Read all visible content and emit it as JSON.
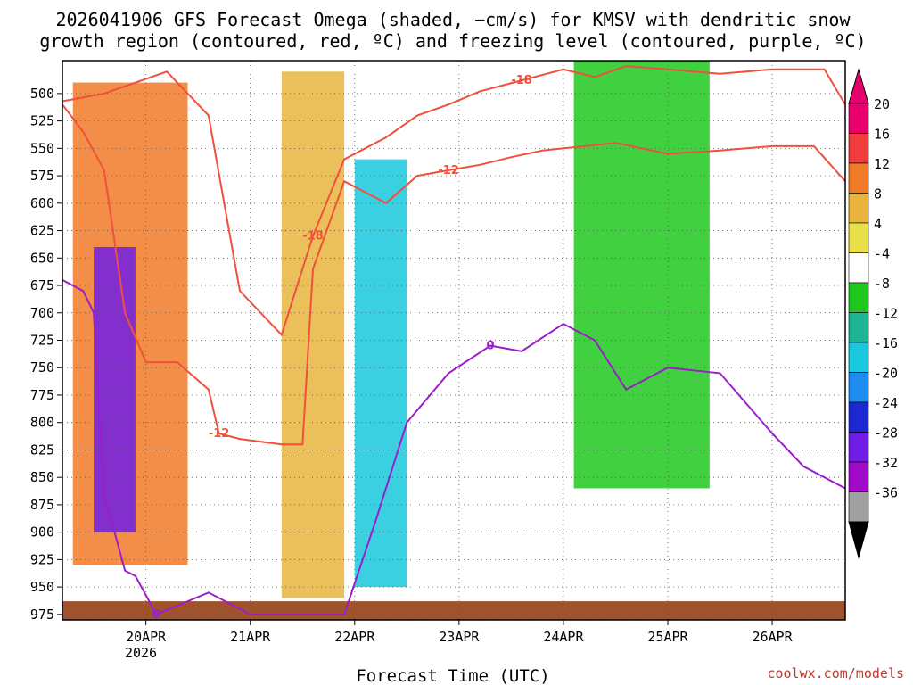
{
  "chart_data": {
    "type": "time-height cross section",
    "title_line1": "2026041906 GFS Forecast Omega (shaded, −cm/s) for KMSV with dendritic snow",
    "title_line2": "growth region (contoured, red, ºC) and freezing level (contoured, purple, ºC)",
    "xlabel": "Forecast Time (UTC)",
    "credit": "coolwx.com/models",
    "year_label": "2026",
    "x_ticks": [
      "20APR",
      "21APR",
      "22APR",
      "23APR",
      "24APR",
      "25APR",
      "26APR"
    ],
    "x_range_days": [
      -0.8,
      6.7
    ],
    "y_ticks": [
      500,
      525,
      550,
      575,
      600,
      625,
      650,
      675,
      700,
      725,
      750,
      775,
      800,
      825,
      850,
      875,
      900,
      925,
      950,
      975
    ],
    "y_range_hpa": [
      470,
      980
    ],
    "colorbar": {
      "labels": [
        "20",
        "16",
        "12",
        "8",
        "4",
        "-4",
        "-8",
        "-12",
        "-16",
        "-20",
        "-24",
        "-28",
        "-32",
        "-36"
      ],
      "colors": [
        "#e8006e",
        "#f03c3c",
        "#f07a28",
        "#e8b43c",
        "#e8e046",
        "#ffffff",
        "#1ec81e",
        "#1eb496",
        "#19c8dc",
        "#1e8cf0",
        "#1e28d2",
        "#6e1ee6",
        "#a00ac8",
        "#a0a0a0"
      ]
    },
    "dendritic_contours": {
      "upper_-18C": {
        "label": "-18",
        "points": [
          [
            -0.8,
            507
          ],
          [
            -0.4,
            500
          ],
          [
            0.2,
            480
          ],
          [
            0.6,
            520
          ],
          [
            0.9,
            680
          ],
          [
            1.3,
            720
          ],
          [
            1.6,
            630
          ],
          [
            1.9,
            560
          ],
          [
            2.3,
            540
          ],
          [
            2.6,
            520
          ],
          [
            2.9,
            510
          ],
          [
            3.2,
            498
          ],
          [
            3.6,
            488
          ],
          [
            4.0,
            478
          ],
          [
            4.3,
            485
          ],
          [
            4.6,
            475
          ],
          [
            5.0,
            478
          ],
          [
            5.5,
            482
          ],
          [
            6.0,
            478
          ],
          [
            6.5,
            478
          ],
          [
            6.7,
            510
          ]
        ]
      },
      "lower_-12C": {
        "label": "-12",
        "points": [
          [
            -0.8,
            510
          ],
          [
            -0.6,
            535
          ],
          [
            -0.4,
            570
          ],
          [
            -0.2,
            700
          ],
          [
            0.0,
            745
          ],
          [
            0.3,
            745
          ],
          [
            0.6,
            770
          ],
          [
            0.7,
            810
          ],
          [
            0.9,
            815
          ],
          [
            1.3,
            820
          ],
          [
            1.5,
            820
          ],
          [
            1.6,
            660
          ],
          [
            1.9,
            580
          ],
          [
            2.3,
            600
          ],
          [
            2.6,
            575
          ],
          [
            2.9,
            570
          ],
          [
            3.2,
            565
          ],
          [
            3.5,
            558
          ],
          [
            3.8,
            552
          ],
          [
            4.2,
            548
          ],
          [
            4.5,
            545
          ],
          [
            5.0,
            555
          ],
          [
            5.5,
            552
          ],
          [
            6.0,
            548
          ],
          [
            6.4,
            548
          ],
          [
            6.7,
            580
          ]
        ]
      }
    },
    "freezing_level": {
      "label": "0",
      "points": [
        [
          -0.8,
          670
        ],
        [
          -0.6,
          680
        ],
        [
          -0.5,
          700
        ],
        [
          -0.4,
          870
        ],
        [
          -0.3,
          900
        ],
        [
          -0.2,
          935
        ],
        [
          -0.1,
          940
        ],
        [
          0.1,
          975
        ],
        [
          0.6,
          955
        ],
        [
          1.0,
          975
        ],
        [
          1.5,
          975
        ],
        [
          1.9,
          975
        ],
        [
          2.2,
          890
        ],
        [
          2.5,
          800
        ],
        [
          2.9,
          755
        ],
        [
          3.3,
          730
        ],
        [
          3.6,
          735
        ],
        [
          4.0,
          710
        ],
        [
          4.3,
          725
        ],
        [
          4.6,
          770
        ],
        [
          5.0,
          750
        ],
        [
          5.5,
          755
        ],
        [
          6.0,
          810
        ],
        [
          6.3,
          840
        ],
        [
          6.7,
          860
        ]
      ]
    },
    "omega_regions_sample": [
      {
        "x0": -0.7,
        "x1": 0.4,
        "p0": 490,
        "p1": 930,
        "omega": 12
      },
      {
        "x0": -0.5,
        "x1": -0.1,
        "p0": 640,
        "p1": 900,
        "omega": -28
      },
      {
        "x0": 1.3,
        "x1": 1.9,
        "p0": 480,
        "p1": 960,
        "omega": 8
      },
      {
        "x0": 2.0,
        "x1": 2.5,
        "p0": 560,
        "p1": 950,
        "omega": -16
      },
      {
        "x0": 4.1,
        "x1": 5.4,
        "p0": 470,
        "p1": 860,
        "omega": -8
      }
    ]
  }
}
